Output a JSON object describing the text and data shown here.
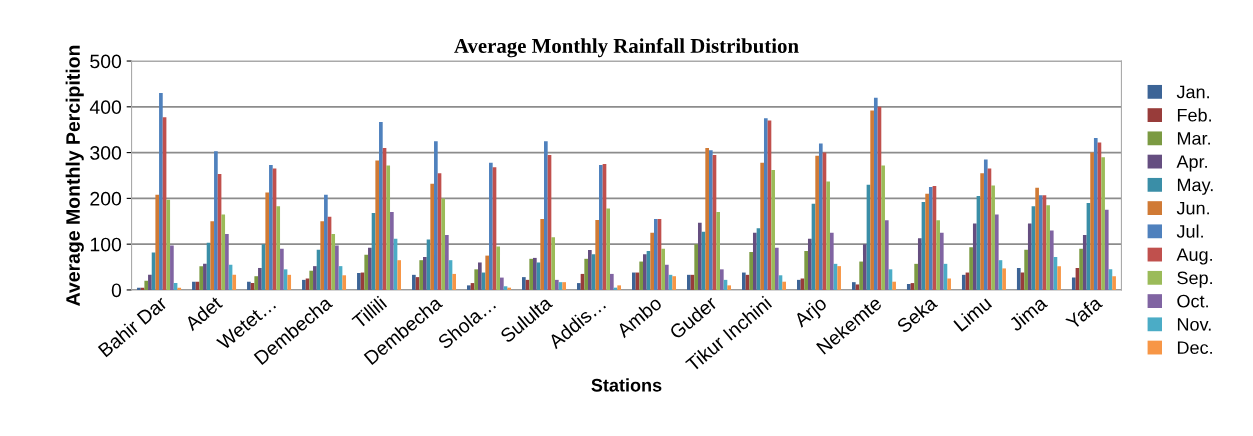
{
  "chart_data": {
    "type": "bar",
    "title": "Average Monthly Rainfall Distribution",
    "xlabel": "Stations",
    "ylabel": "Average Monthly Percipition",
    "categories": [
      "Bahir Dar",
      "Adet",
      "Wetet…",
      "Dembecha",
      "Tillili",
      "Dembecha",
      "Shola…",
      "Sululta",
      "Addis…",
      "Ambo",
      "Guder",
      "Tikur Inchini",
      "Arjo",
      "Nekemte",
      "Seka",
      "Limu",
      "Jima",
      "Yafa"
    ],
    "series": [
      {
        "name": "Jan.",
        "color": "#3c6496",
        "values": [
          5,
          18,
          18,
          22,
          37,
          33,
          10,
          28,
          15,
          38,
          33,
          38,
          22,
          17,
          13,
          33,
          48,
          27
        ]
      },
      {
        "name": "Feb.",
        "color": "#983c3a",
        "values": [
          5,
          18,
          15,
          25,
          38,
          28,
          15,
          22,
          35,
          38,
          33,
          33,
          25,
          12,
          15,
          38,
          38,
          48
        ]
      },
      {
        "name": "Mar.",
        "color": "#7b9a42",
        "values": [
          20,
          52,
          30,
          42,
          77,
          65,
          45,
          68,
          68,
          62,
          100,
          83,
          85,
          62,
          57,
          93,
          88,
          90
        ]
      },
      {
        "name": "Apr.",
        "color": "#654e80",
        "values": [
          33,
          57,
          48,
          52,
          92,
          72,
          60,
          70,
          87,
          78,
          147,
          125,
          112,
          100,
          113,
          145,
          145,
          120
        ]
      },
      {
        "name": "May.",
        "color": "#3a8ea7",
        "values": [
          82,
          103,
          100,
          88,
          168,
          110,
          38,
          60,
          78,
          85,
          127,
          135,
          188,
          230,
          192,
          205,
          183,
          190
        ]
      },
      {
        "name": "Jun.",
        "color": "#d07a35",
        "values": [
          208,
          150,
          213,
          150,
          283,
          232,
          75,
          155,
          153,
          125,
          310,
          278,
          293,
          392,
          210,
          255,
          223,
          300
        ]
      },
      {
        "name": "Jul.",
        "color": "#4f81bd",
        "values": [
          430,
          303,
          273,
          208,
          367,
          325,
          278,
          325,
          273,
          155,
          305,
          375,
          320,
          420,
          225,
          285,
          207,
          332
        ]
      },
      {
        "name": "Aug.",
        "color": "#c0504d",
        "values": [
          377,
          253,
          265,
          160,
          310,
          255,
          268,
          295,
          275,
          155,
          295,
          370,
          300,
          400,
          227,
          265,
          207,
          322
        ]
      },
      {
        "name": "Sep.",
        "color": "#9bbb59",
        "values": [
          197,
          165,
          183,
          122,
          272,
          200,
          95,
          115,
          178,
          90,
          170,
          262,
          237,
          272,
          152,
          228,
          185,
          290
        ]
      },
      {
        "name": "Oct.",
        "color": "#8064a2",
        "values": [
          97,
          122,
          90,
          97,
          170,
          120,
          27,
          22,
          35,
          55,
          45,
          92,
          125,
          152,
          125,
          165,
          130,
          175
        ]
      },
      {
        "name": "Nov.",
        "color": "#4bacc6",
        "values": [
          15,
          55,
          45,
          52,
          112,
          65,
          8,
          17,
          5,
          33,
          22,
          32,
          57,
          45,
          57,
          65,
          72,
          45
        ]
      },
      {
        "name": "Dec.",
        "color": "#f79646",
        "values": [
          5,
          33,
          33,
          32,
          65,
          35,
          5,
          17,
          10,
          30,
          10,
          18,
          52,
          18,
          25,
          47,
          52,
          30
        ]
      }
    ],
    "ylim": [
      0,
      500
    ],
    "yticks": [
      0,
      100,
      200,
      300,
      400,
      500
    ],
    "grid": "y",
    "legend": "right"
  }
}
